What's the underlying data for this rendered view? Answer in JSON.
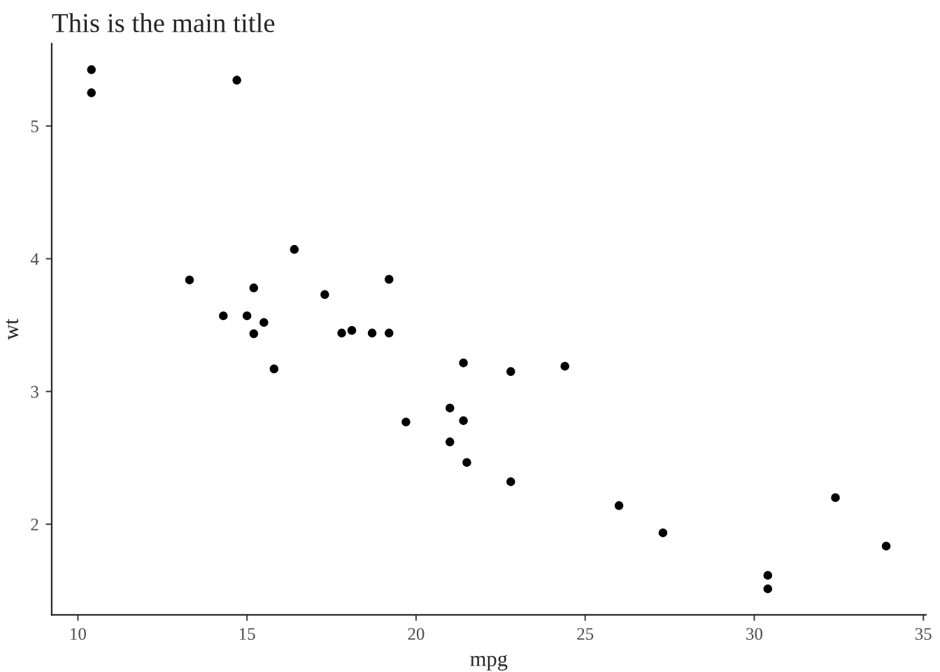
{
  "chart_data": {
    "type": "scatter",
    "title": "This is the main title",
    "xlabel": "mpg",
    "ylabel": "wt",
    "x": [
      21.0,
      21.0,
      22.8,
      21.4,
      18.7,
      18.1,
      14.3,
      24.4,
      22.8,
      19.2,
      17.8,
      16.4,
      17.3,
      15.2,
      10.4,
      10.4,
      14.7,
      32.4,
      30.4,
      33.9,
      21.5,
      15.5,
      15.2,
      13.3,
      19.2,
      27.3,
      26.0,
      30.4,
      15.8,
      19.7,
      15.0,
      21.4
    ],
    "series": [
      {
        "color": "#000000",
        "values": [
          2.62,
          2.875,
          2.32,
          3.215,
          3.44,
          3.46,
          3.57,
          3.19,
          3.15,
          3.44,
          3.44,
          4.07,
          3.73,
          3.78,
          5.25,
          5.424,
          5.345,
          2.2,
          1.615,
          1.835,
          2.465,
          3.52,
          3.435,
          3.84,
          3.845,
          1.935,
          2.14,
          1.513,
          3.17,
          2.77,
          3.57,
          2.78
        ]
      }
    ],
    "xlim": [
      9.225,
      35.075
    ],
    "ylim": [
      1.317,
      5.62
    ],
    "xticks": [
      10,
      15,
      20,
      25,
      30,
      35
    ],
    "yticks": [
      2,
      3,
      4,
      5
    ],
    "grid": false,
    "marker": "circle"
  }
}
